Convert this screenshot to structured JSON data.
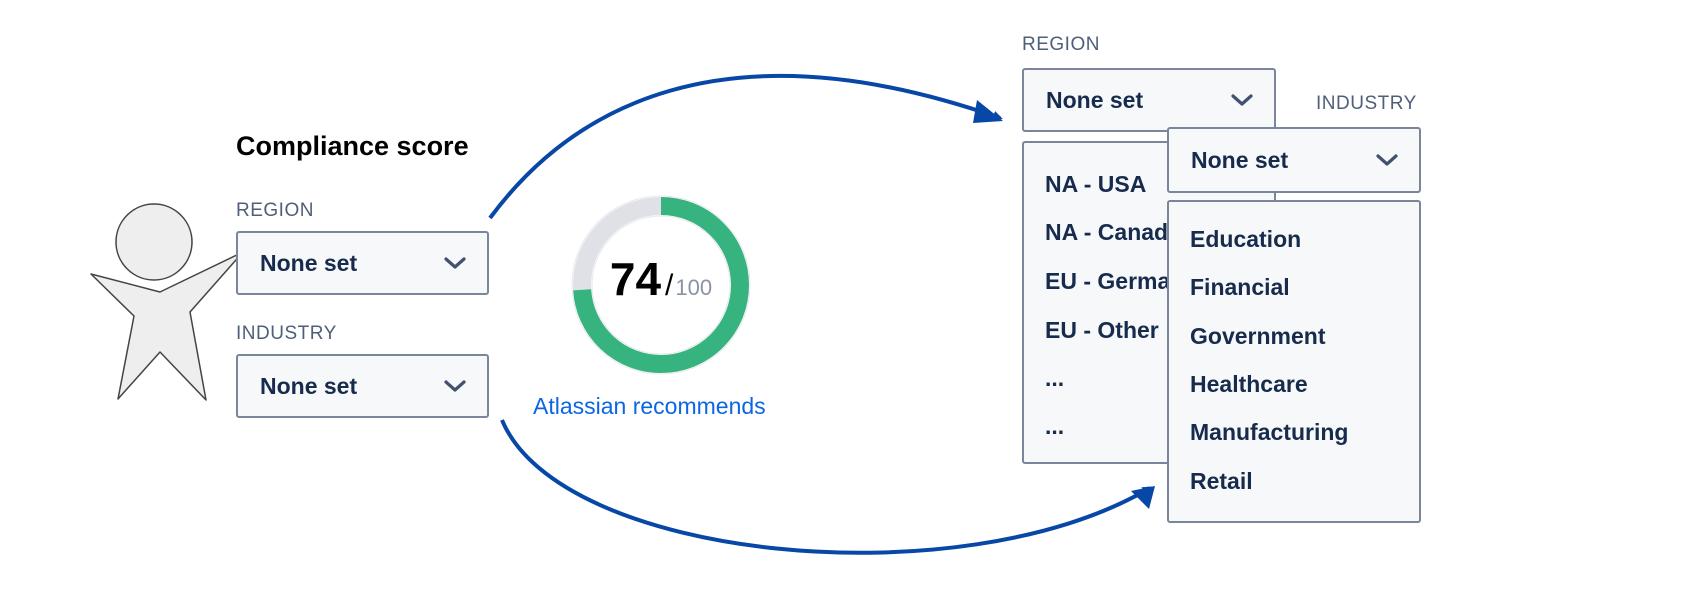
{
  "left_panel": {
    "title": "Compliance score",
    "region": {
      "label": "REGION",
      "value": "None set"
    },
    "industry": {
      "label": "INDUSTRY",
      "value": "None set"
    }
  },
  "score": {
    "value": "74",
    "separator": "/",
    "max": "100",
    "fraction": 0.74,
    "link": "Atlassian recommends",
    "colors": {
      "fill": "#36b37e",
      "track": "#dfe1e6"
    }
  },
  "region_dropdown": {
    "label": "REGION",
    "value": "None set",
    "options": [
      "NA - USA",
      "NA - Canada",
      "EU - Germany",
      "EU - Other",
      "...",
      "..."
    ]
  },
  "industry_dropdown": {
    "label": "INDUSTRY",
    "value": "None set",
    "options": [
      "Education",
      "Financial",
      "Government",
      "Healthcare",
      "Manufacturing",
      "Retail"
    ]
  },
  "icons": [
    "user-figure-icon",
    "chevron-down-icon",
    "flow-arrow-icon"
  ],
  "arrow_color": "#0747a6"
}
